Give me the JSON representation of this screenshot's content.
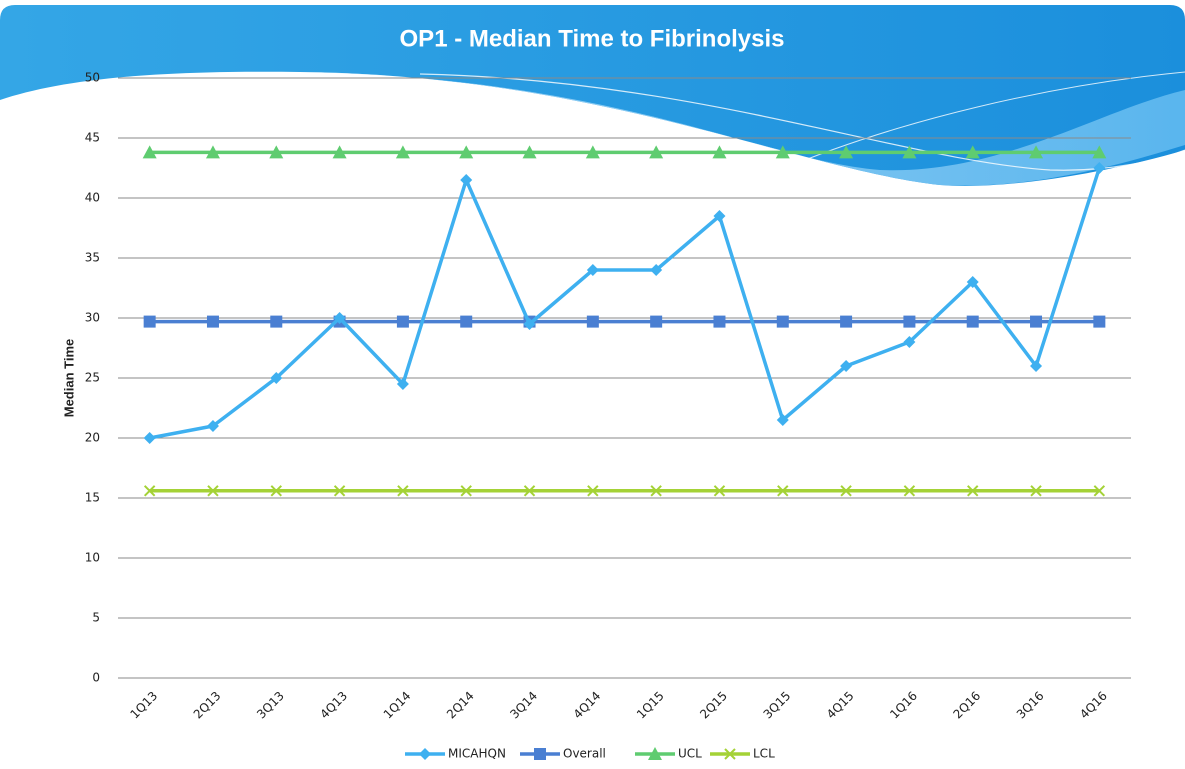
{
  "chart_data": {
    "type": "line",
    "title": "OP1 - Median Time to Fibrinolysis",
    "y_label": "Median Time",
    "categories": [
      "1Q13",
      "2Q13",
      "3Q13",
      "4Q13",
      "1Q14",
      "2Q14",
      "3Q14",
      "4Q14",
      "1Q15",
      "2Q15",
      "3Q15",
      "4Q15",
      "1Q16",
      "2Q16",
      "3Q16",
      "4Q16"
    ],
    "series": [
      {
        "name": "MICAHQN",
        "color": "#3eb0f0",
        "marker": "diamond",
        "values": [
          20,
          21,
          25,
          30,
          24.5,
          41.5,
          29.5,
          34,
          34,
          38.5,
          21.5,
          26,
          28,
          33,
          26,
          42.5
        ]
      },
      {
        "name": "Overall",
        "color": "#4a7fd2",
        "marker": "square",
        "values": [
          29.7,
          29.7,
          29.7,
          29.7,
          29.7,
          29.7,
          29.7,
          29.7,
          29.7,
          29.7,
          29.7,
          29.7,
          29.7,
          29.7,
          29.7,
          29.7
        ]
      },
      {
        "name": "UCL",
        "color": "#5fcc70",
        "marker": "triangle",
        "values": [
          43.8,
          43.8,
          43.8,
          43.8,
          43.8,
          43.8,
          43.8,
          43.8,
          43.8,
          43.8,
          43.8,
          43.8,
          43.8,
          43.8,
          43.8,
          43.8
        ]
      },
      {
        "name": "LCL",
        "color": "#a4d236",
        "marker": "x",
        "values": [
          15.6,
          15.6,
          15.6,
          15.6,
          15.6,
          15.6,
          15.6,
          15.6,
          15.6,
          15.6,
          15.6,
          15.6,
          15.6,
          15.6,
          15.6,
          15.6
        ]
      }
    ],
    "ylim": [
      0,
      50
    ],
    "yticks": [
      0,
      5,
      10,
      15,
      20,
      25,
      30,
      35,
      40,
      45,
      50
    ],
    "grid": true,
    "legend": "bottom"
  }
}
